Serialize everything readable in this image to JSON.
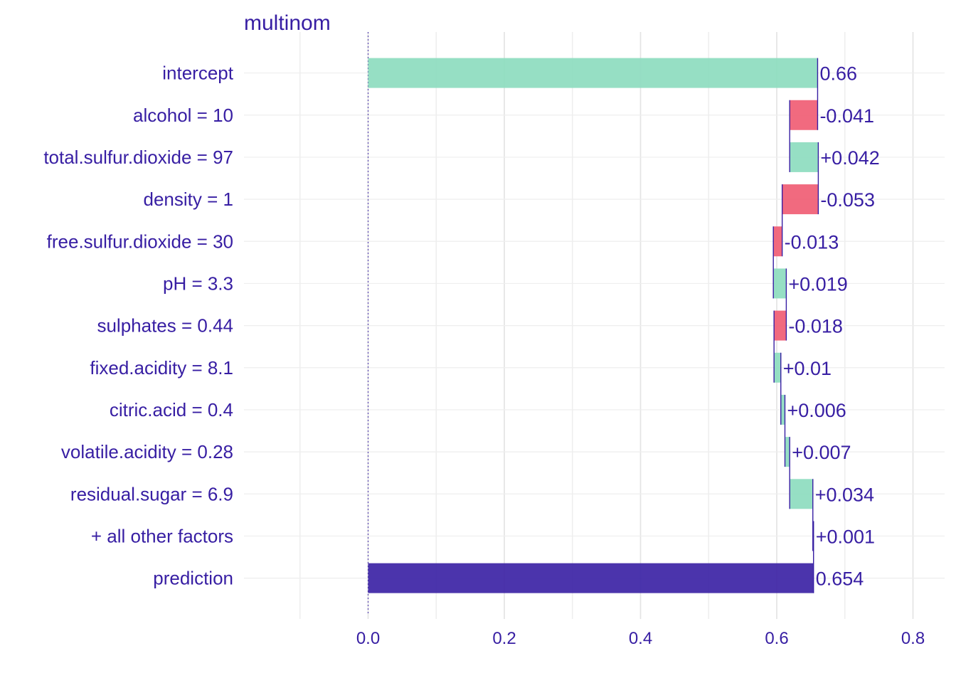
{
  "colors": {
    "positive": "#8bdcbe",
    "negative": "#f05a71",
    "prediction": "#371ea3",
    "text": "#371ea3",
    "connector": "#371ea3",
    "grid": "#e6e6e6"
  },
  "chart_data": {
    "type": "bar",
    "subtype": "waterfall (break-down)",
    "title": "multinom",
    "xlim": [
      -0.1,
      0.8
    ],
    "xticks": [
      "0.0",
      "0.2",
      "0.4",
      "0.6",
      "0.8"
    ],
    "grid": true,
    "baseline": 0,
    "rows": [
      {
        "label": "intercept",
        "start": 0,
        "end": 0.66,
        "kind": "positive",
        "text": "0.66"
      },
      {
        "label": "alcohol = 10",
        "start": 0.66,
        "end": 0.619,
        "kind": "negative",
        "text": "-0.041"
      },
      {
        "label": "total.sulfur.dioxide = 97",
        "start": 0.619,
        "end": 0.661,
        "kind": "positive",
        "text": "+0.042"
      },
      {
        "label": "density = 1",
        "start": 0.661,
        "end": 0.608,
        "kind": "negative",
        "text": "-0.053"
      },
      {
        "label": "free.sulfur.dioxide = 30",
        "start": 0.608,
        "end": 0.595,
        "kind": "negative",
        "text": "-0.013"
      },
      {
        "label": "pH = 3.3",
        "start": 0.595,
        "end": 0.614,
        "kind": "positive",
        "text": "+0.019"
      },
      {
        "label": "sulphates = 0.44",
        "start": 0.614,
        "end": 0.596,
        "kind": "negative",
        "text": "-0.018"
      },
      {
        "label": "fixed.acidity = 8.1",
        "start": 0.596,
        "end": 0.606,
        "kind": "positive",
        "text": "+0.01"
      },
      {
        "label": "citric.acid = 0.4",
        "start": 0.606,
        "end": 0.612,
        "kind": "positive",
        "text": "+0.006"
      },
      {
        "label": "volatile.acidity = 0.28",
        "start": 0.612,
        "end": 0.619,
        "kind": "positive",
        "text": "+0.007"
      },
      {
        "label": "residual.sugar = 6.9",
        "start": 0.619,
        "end": 0.653,
        "kind": "positive",
        "text": "+0.034"
      },
      {
        "label": "+ all other factors",
        "start": 0.653,
        "end": 0.654,
        "kind": "positive",
        "text": "+0.001"
      },
      {
        "label": "prediction",
        "start": 0,
        "end": 0.654,
        "kind": "prediction",
        "text": "0.654"
      }
    ]
  }
}
